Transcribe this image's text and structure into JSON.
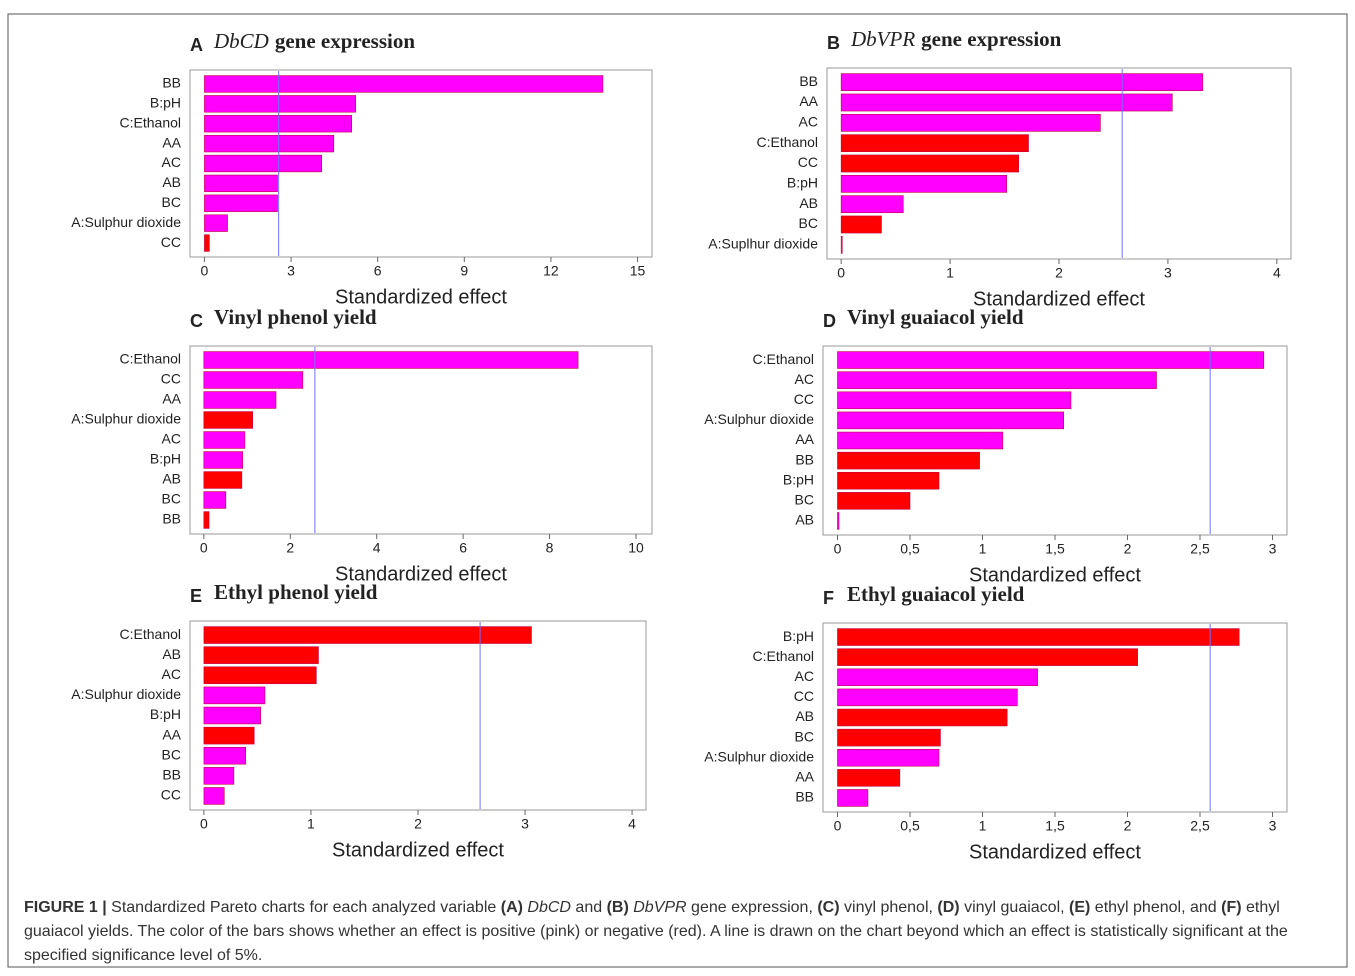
{
  "chart_data": [
    {
      "type": "barh",
      "panel": "A",
      "title_italic": "DbCD",
      "title": "gene expression",
      "xlabel": "Standardized effect",
      "categories": [
        "BB",
        "B:pH",
        "C:Ethanol",
        "AA",
        "AC",
        "AB",
        "BC",
        "A:Sulphur dioxide",
        "CC"
      ],
      "values": [
        13.8,
        5.24,
        5.1,
        4.48,
        4.06,
        2.53,
        2.53,
        0.8,
        0.17
      ],
      "bar_colors": [
        "#ff00ff",
        "#ff00ff",
        "#ff00ff",
        "#ff00ff",
        "#ff00ff",
        "#ff00ff",
        "#ff00ff",
        "#ff00ff",
        "#ff0000"
      ],
      "significance_line": 2.57,
      "line_color": "#7070ff",
      "xlim": [
        -0.5,
        15.5
      ],
      "xticks": [
        0,
        3,
        6,
        9,
        12,
        15
      ]
    },
    {
      "type": "barh",
      "panel": "B",
      "title_italic": "DbVPR",
      "title": "gene expression",
      "xlabel": "Standardized effect",
      "categories": [
        "BB",
        "AA",
        "AC",
        "C:Ethanol",
        "CC",
        "B:pH",
        "AB",
        "BC",
        "A:Suplhur dioxide"
      ],
      "values": [
        3.32,
        3.04,
        2.38,
        1.72,
        1.63,
        1.52,
        0.57,
        0.37,
        0.01
      ],
      "bar_colors": [
        "#ff00ff",
        "#ff00ff",
        "#ff00ff",
        "#ff0000",
        "#ff0000",
        "#ff00ff",
        "#ff00ff",
        "#ff0000",
        "#ff00ff"
      ],
      "significance_line": 2.58,
      "line_color": "#7070ff",
      "xlim": [
        -0.13,
        4.13
      ],
      "xticks": [
        0,
        1,
        2,
        3,
        4
      ]
    },
    {
      "type": "barh",
      "panel": "C",
      "title": "Vinyl phenol yield",
      "xlabel": "Standardized effect",
      "categories": [
        "C:Ethanol",
        "CC",
        "AA",
        "A:Sulphur dioxide",
        "AC",
        "B:pH",
        "AB",
        "BC",
        "BB"
      ],
      "values": [
        8.66,
        2.29,
        1.67,
        1.13,
        0.95,
        0.9,
        0.88,
        0.51,
        0.12
      ],
      "bar_colors": [
        "#ff00ff",
        "#ff00ff",
        "#ff00ff",
        "#ff0000",
        "#ff00ff",
        "#ff00ff",
        "#ff0000",
        "#ff00ff",
        "#ff0000"
      ],
      "significance_line": 2.57,
      "line_color": "#7070ff",
      "xlim": [
        -0.32,
        10.37
      ],
      "xticks": [
        0,
        2,
        4,
        6,
        8,
        10
      ]
    },
    {
      "type": "barh",
      "panel": "D",
      "title": "Vinyl guaiacol yield",
      "xlabel": "Standardized effect",
      "categories": [
        "C:Ethanol",
        "AC",
        "CC",
        "A:Sulphur dioxide",
        "AA",
        "BB",
        "B:pH",
        "BC",
        "AB"
      ],
      "values": [
        2.94,
        2.2,
        1.61,
        1.56,
        1.14,
        0.98,
        0.7,
        0.5,
        0.01
      ],
      "bar_colors": [
        "#ff00ff",
        "#ff00ff",
        "#ff00ff",
        "#ff00ff",
        "#ff00ff",
        "#ff0000",
        "#ff0000",
        "#ff0000",
        "#ff00ff"
      ],
      "significance_line": 2.57,
      "line_color": "#7070ff",
      "xlim": [
        -0.1,
        3.1
      ],
      "xticks": [
        0,
        {
          "value": 0.5,
          "label": "0,5"
        },
        1,
        {
          "value": 1.5,
          "label": "1,5"
        },
        2,
        {
          "value": 2.5,
          "label": "2,5"
        },
        3
      ]
    },
    {
      "type": "barh",
      "panel": "E",
      "title": "Ethyl phenol yield",
      "xlabel": "Standardized effect",
      "categories": [
        "C:Ethanol",
        "AB",
        "AC",
        "A:Sulphur dioxide",
        "B:pH",
        "AA",
        "BC",
        "BB",
        "CC"
      ],
      "values": [
        3.06,
        1.07,
        1.05,
        0.57,
        0.53,
        0.47,
        0.39,
        0.28,
        0.19
      ],
      "bar_colors": [
        "#ff0000",
        "#ff0000",
        "#ff0000",
        "#ff00ff",
        "#ff00ff",
        "#ff0000",
        "#ff00ff",
        "#ff00ff",
        "#ff00ff"
      ],
      "significance_line": 2.58,
      "line_color": "#7070ff",
      "xlim": [
        -0.13,
        4.13
      ],
      "xticks": [
        0,
        1,
        2,
        3,
        4
      ]
    },
    {
      "type": "barh",
      "panel": "F",
      "title": "Ethyl guaiacol yield",
      "xlabel": "Standardized effect",
      "categories": [
        "B:pH",
        "C:Ethanol",
        "AC",
        "CC",
        "AB",
        "BC",
        "A:Sulphur dioxide",
        "AA",
        "BB"
      ],
      "values": [
        2.77,
        2.07,
        1.38,
        1.24,
        1.17,
        0.71,
        0.7,
        0.43,
        0.21
      ],
      "bar_colors": [
        "#ff0000",
        "#ff0000",
        "#ff00ff",
        "#ff00ff",
        "#ff0000",
        "#ff0000",
        "#ff00ff",
        "#ff0000",
        "#ff00ff"
      ],
      "significance_line": 2.57,
      "line_color": "#7070ff",
      "xlim": [
        -0.1,
        3.1
      ],
      "xticks": [
        0,
        {
          "value": 0.5,
          "label": "0,5"
        },
        1,
        {
          "value": 1.5,
          "label": "1,5"
        },
        2,
        {
          "value": 2.5,
          "label": "2,5"
        },
        3
      ]
    }
  ],
  "caption": [
    {
      "text": "FIGURE 1 |",
      "style": "bold"
    },
    {
      "text": " Standardized Pareto charts for each analyzed variable ",
      "style": "normal"
    },
    {
      "text": "(A)",
      "style": "bold"
    },
    {
      "text": " ",
      "style": "normal"
    },
    {
      "text": "DbCD",
      "style": "italic"
    },
    {
      "text": " and ",
      "style": "normal"
    },
    {
      "text": "(B)",
      "style": "bold"
    },
    {
      "text": " ",
      "style": "normal"
    },
    {
      "text": "DbVPR",
      "style": "italic"
    },
    {
      "text": " gene expression, ",
      "style": "normal"
    },
    {
      "text": "(C)",
      "style": "bold"
    },
    {
      "text": " vinyl phenol, ",
      "style": "normal"
    },
    {
      "text": "(D)",
      "style": "bold"
    },
    {
      "text": " vinyl guaiacol, ",
      "style": "normal"
    },
    {
      "text": "(E)",
      "style": "bold"
    },
    {
      "text": " ethyl phenol, and ",
      "style": "normal"
    },
    {
      "text": "(F)",
      "style": "bold"
    },
    {
      "text": " ethyl guaiacol yields. The color of the bars shows whether an effect is positive (pink) or negative (red). A line is drawn on the chart beyond which an effect is statistically significant at the specified significance level of 5%.",
      "style": "normal"
    }
  ]
}
